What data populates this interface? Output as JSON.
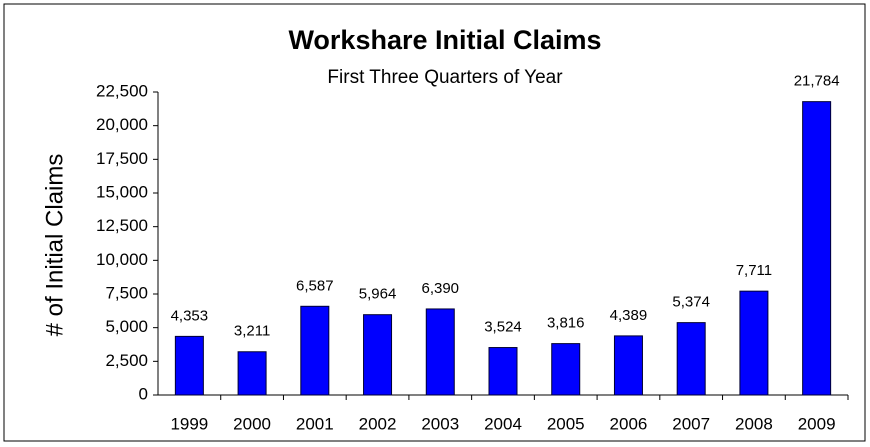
{
  "chart_data": {
    "type": "bar",
    "title": "Workshare Initial Claims",
    "subtitle": "First Three Quarters of Year",
    "y_label": "# of Initial Claims",
    "categories": [
      "1999",
      "2000",
      "2001",
      "2002",
      "2003",
      "2004",
      "2005",
      "2006",
      "2007",
      "2008",
      "2009"
    ],
    "values": [
      4353,
      3211,
      6587,
      5964,
      6390,
      3524,
      3816,
      4389,
      5374,
      7711,
      21784
    ],
    "value_labels": [
      "4,353",
      "3,211",
      "6,587",
      "5,964",
      "6,390",
      "3,524",
      "3,816",
      "4,389",
      "5,374",
      "7,711",
      "21,784"
    ],
    "color": "#0000ff",
    "ylim": [
      0,
      22500
    ],
    "yticks": [
      0,
      {
        "value": 2500,
        "label": "2,500"
      },
      {
        "value": 5000,
        "label": "5,000"
      },
      {
        "value": 7500,
        "label": "7,500"
      },
      {
        "value": 10000,
        "label": "10,000"
      },
      {
        "value": 12500,
        "label": "12,500"
      },
      {
        "value": 15000,
        "label": "15,000"
      },
      {
        "value": 17500,
        "label": "17,500"
      },
      {
        "value": 20000,
        "label": "20,000"
      },
      {
        "value": 22500,
        "label": "22,500"
      }
    ],
    "grid": false
  }
}
